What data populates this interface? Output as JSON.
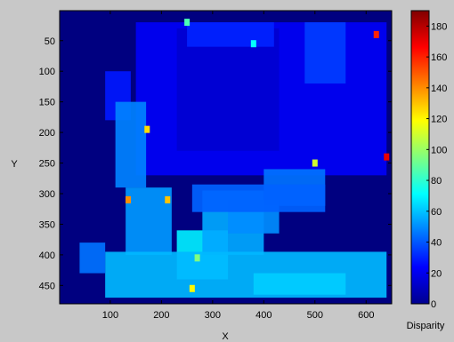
{
  "chart_data": {
    "type": "heatmap",
    "title": "",
    "xlabel": "X",
    "ylabel": "Y",
    "xlim": [
      1,
      650
    ],
    "ylim": [
      1,
      480
    ],
    "y_reversed": true,
    "x_ticks": [
      "100",
      "200",
      "300",
      "400",
      "500",
      "600"
    ],
    "x_tick_values": [
      100,
      200,
      300,
      400,
      500,
      600
    ],
    "y_ticks": [
      "50",
      "100",
      "150",
      "200",
      "250",
      "300",
      "350",
      "400",
      "450"
    ],
    "y_tick_values": [
      50,
      100,
      150,
      200,
      250,
      300,
      350,
      400,
      450
    ],
    "colormap": "jet",
    "colorbar": {
      "label": "Disparity",
      "range": [
        0,
        190
      ],
      "ticks": [
        "0",
        "20",
        "40",
        "60",
        "80",
        "100",
        "120",
        "140",
        "160",
        "180"
      ],
      "tick_values": [
        0,
        20,
        40,
        60,
        80,
        100,
        120,
        140,
        160,
        180
      ]
    },
    "background_value": 0,
    "regions": [
      {
        "x": [
          150,
          640
        ],
        "y": [
          20,
          270
        ],
        "value": 22
      },
      {
        "x": [
          230,
          430
        ],
        "y": [
          30,
          230
        ],
        "value": 15
      },
      {
        "x": [
          250,
          420
        ],
        "y": [
          20,
          60
        ],
        "value": 30
      },
      {
        "x": [
          90,
          140
        ],
        "y": [
          100,
          180
        ],
        "value": 28
      },
      {
        "x": [
          480,
          560
        ],
        "y": [
          20,
          120
        ],
        "value": 35
      },
      {
        "x": [
          110,
          170
        ],
        "y": [
          150,
          290
        ],
        "value": 48
      },
      {
        "x": [
          130,
          220
        ],
        "y": [
          290,
          400
        ],
        "value": 52
      },
      {
        "x": [
          230,
          330
        ],
        "y": [
          360,
          440
        ],
        "value": 68
      },
      {
        "x": [
          280,
          400
        ],
        "y": [
          295,
          400
        ],
        "value": 55
      },
      {
        "x": [
          330,
          430
        ],
        "y": [
          310,
          365
        ],
        "value": 50
      },
      {
        "x": [
          400,
          520
        ],
        "y": [
          260,
          320
        ],
        "value": 45
      },
      {
        "x": [
          260,
          520
        ],
        "y": [
          285,
          330
        ],
        "value": 42
      },
      {
        "x": [
          90,
          640
        ],
        "y": [
          395,
          470
        ],
        "value": 58
      },
      {
        "x": [
          40,
          90
        ],
        "y": [
          380,
          430
        ],
        "value": 45
      },
      {
        "x": [
          380,
          560
        ],
        "y": [
          430,
          465
        ],
        "value": 62
      }
    ],
    "highlights": [
      {
        "x": 172,
        "y": 195,
        "value": 125
      },
      {
        "x": 135,
        "y": 310,
        "value": 140
      },
      {
        "x": 212,
        "y": 310,
        "value": 130
      },
      {
        "x": 260,
        "y": 455,
        "value": 120
      },
      {
        "x": 500,
        "y": 250,
        "value": 110
      },
      {
        "x": 640,
        "y": 240,
        "value": 170
      },
      {
        "x": 620,
        "y": 40,
        "value": 160
      },
      {
        "x": 250,
        "y": 20,
        "value": 85
      },
      {
        "x": 380,
        "y": 55,
        "value": 72
      },
      {
        "x": 270,
        "y": 405,
        "value": 95
      }
    ]
  }
}
